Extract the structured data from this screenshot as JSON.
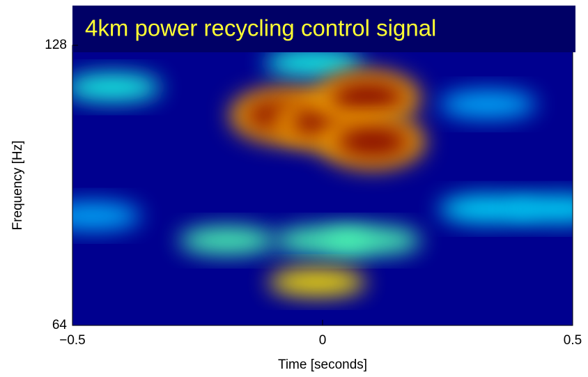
{
  "chart_data": {
    "type": "heatmap",
    "title": "4km power recycling control signal",
    "x_label": "Time [seconds]",
    "y_label": "Frequency [Hz]",
    "xlim": [
      -0.5,
      0.5
    ],
    "xticks": [
      {
        "value": -0.5,
        "label": "−0.5"
      },
      0,
      0.5
    ],
    "ylim": [
      64,
      128
    ],
    "yticks": [
      64,
      128
    ],
    "colormap": "jet",
    "background_color": "#00008f",
    "x": [
      -0.46,
      0.33,
      0.33,
      0.47,
      -0.42,
      -0.018,
      -0.19,
      0.0,
      0.1,
      -0.011,
      -0.08,
      0.01,
      0.09,
      0.1
    ],
    "y": [
      89,
      114.5,
      90.6,
      90.6,
      118.4,
      124,
      83.4,
      83.4,
      83.4,
      73.9,
      112,
      110.5,
      116,
      106
    ],
    "values": [
      0.3,
      0.3,
      0.35,
      0.35,
      0.4,
      0.4,
      0.45,
      0.45,
      0.45,
      0.65,
      1,
      1,
      1,
      1
    ]
  }
}
